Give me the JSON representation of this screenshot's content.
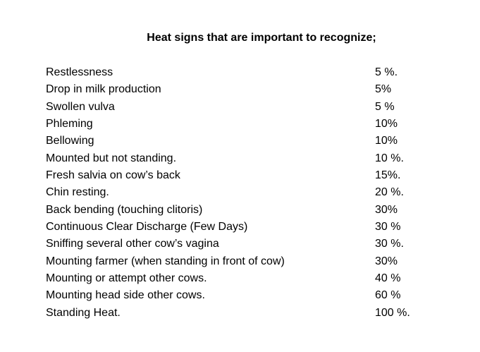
{
  "title": "Heat signs that are important to recognize;",
  "signs": [
    {
      "label": "Restlessness",
      "percent": "5 %."
    },
    {
      "label": "Drop in milk production",
      "percent": "5%"
    },
    {
      "label": "Swollen vulva",
      "percent": "5 %"
    },
    {
      "label": "Phleming",
      "percent": "10%"
    },
    {
      "label": "Bellowing",
      "percent": "10%"
    },
    {
      "label": "Mounted but not standing.",
      "percent": "10 %."
    },
    {
      "label": "Fresh salvia on cow’s back",
      "percent": "15%."
    },
    {
      "label": "Chin resting.",
      "percent": "20 %."
    },
    {
      "label": "Back bending (touching clitoris)",
      "percent": "30%"
    },
    {
      "label": "Continuous Clear Discharge (Few Days)",
      "percent": "30 %"
    },
    {
      "label": "Sniffing several other cow’s vagina",
      "percent": "30 %."
    },
    {
      "label": "Mounting farmer (when standing in front of cow)",
      "percent": "30%"
    },
    {
      "label": "Mounting or attempt other cows.",
      "percent": "40 %"
    },
    {
      "label": "Mounting head side other cows.",
      "percent": "60 %"
    },
    {
      "label": "Standing Heat.",
      "percent": "100 %."
    }
  ]
}
